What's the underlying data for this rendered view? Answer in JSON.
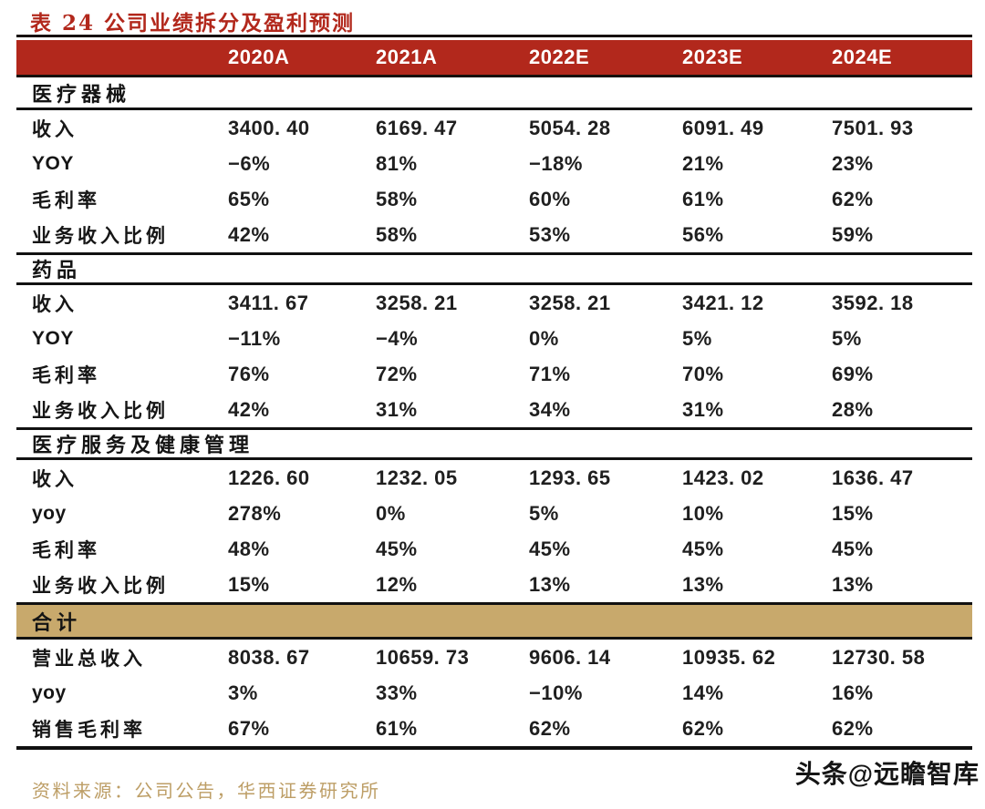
{
  "title": "表 24 公司业绩拆分及盈利预测",
  "colors": {
    "header_bg": "#B2281C",
    "total_row_bg": "#C8A96C",
    "title_color": "#B2281C",
    "source_color": "#BD9E66",
    "header_text": "#FFFFFF",
    "rule_color": "#111111"
  },
  "table": {
    "columns": [
      "2020A",
      "2021A",
      "2022E",
      "2023E",
      "2024E"
    ],
    "sections": [
      {
        "name": "医疗器械",
        "style": "plain",
        "rows": [
          {
            "label": "收入",
            "values": [
              "3400. 40",
              "6169. 47",
              "5054. 28",
              "6091. 49",
              "7501. 93"
            ]
          },
          {
            "label": "YOY",
            "values": [
              "−6%",
              "81%",
              "−18%",
              "21%",
              "23%"
            ]
          },
          {
            "label": "毛利率",
            "values": [
              "65%",
              "58%",
              "60%",
              "61%",
              "62%"
            ]
          },
          {
            "label": "业务收入比例",
            "values": [
              "42%",
              "58%",
              "53%",
              "56%",
              "59%"
            ]
          }
        ]
      },
      {
        "name": "药品",
        "style": "plain",
        "rows": [
          {
            "label": "收入",
            "values": [
              "3411. 67",
              "3258. 21",
              "3258. 21",
              "3421. 12",
              "3592. 18"
            ]
          },
          {
            "label": "YOY",
            "values": [
              "−11%",
              "−4%",
              "0%",
              "5%",
              "5%"
            ]
          },
          {
            "label": "毛利率",
            "values": [
              "76%",
              "72%",
              "71%",
              "70%",
              "69%"
            ]
          },
          {
            "label": "业务收入比例",
            "values": [
              "42%",
              "31%",
              "34%",
              "31%",
              "28%"
            ]
          }
        ]
      },
      {
        "name": "医疗服务及健康管理",
        "style": "plain",
        "rows": [
          {
            "label": "收入",
            "values": [
              "1226. 60",
              "1232. 05",
              "1293. 65",
              "1423. 02",
              "1636. 47"
            ]
          },
          {
            "label": "yoy",
            "values": [
              "278%",
              "0%",
              "5%",
              "10%",
              "15%"
            ]
          },
          {
            "label": "毛利率",
            "values": [
              "48%",
              "45%",
              "45%",
              "45%",
              "45%"
            ]
          },
          {
            "label": "业务收入比例",
            "values": [
              "15%",
              "12%",
              "13%",
              "13%",
              "13%"
            ]
          }
        ]
      },
      {
        "name": "合计",
        "style": "total",
        "rows": [
          {
            "label": "营业总收入",
            "values": [
              "8038. 67",
              "10659. 73",
              "9606. 14",
              "10935. 62",
              "12730. 58"
            ]
          },
          {
            "label": "yoy",
            "values": [
              "3%",
              "33%",
              "−10%",
              "14%",
              "16%"
            ]
          },
          {
            "label": "销售毛利率",
            "values": [
              "67%",
              "61%",
              "62%",
              "62%",
              "62%"
            ]
          }
        ]
      }
    ]
  },
  "source": "资料来源：公司公告，华西证券研究所",
  "watermark": "头条@远瞻智库"
}
